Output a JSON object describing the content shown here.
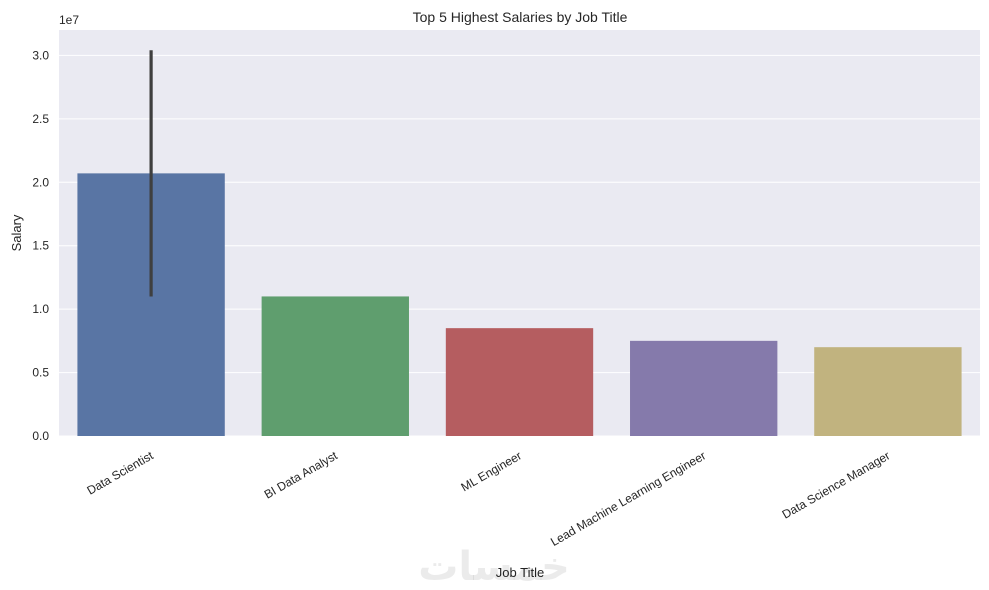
{
  "chart_data": {
    "type": "bar",
    "title": "Top 5 Highest Salaries by Job Title",
    "xlabel": "Job Title",
    "ylabel": "Salary",
    "y_offset_label": "1e7",
    "ylim": [
      0,
      32000000
    ],
    "yticks": [
      0,
      5000000,
      10000000,
      15000000,
      20000000,
      25000000,
      30000000
    ],
    "ytick_labels": [
      "0.0",
      "0.5",
      "1.0",
      "1.5",
      "2.0",
      "2.5",
      "3.0"
    ],
    "grid": true,
    "categories": [
      "Data Scientist",
      "BI Data Analyst",
      "ML Engineer",
      "Lead Machine Learning Engineer",
      "Data Science Manager"
    ],
    "values": [
      20700000,
      11000000,
      8500000,
      7500000,
      7000000
    ],
    "error_bars": [
      [
        11000000,
        30400000
      ],
      null,
      null,
      null,
      null
    ],
    "colors": [
      "#5975a4",
      "#5f9e6e",
      "#b55d60",
      "#857aab",
      "#c1b37f"
    ],
    "background_color": "#eaeaf2",
    "watermark": "خمسات"
  }
}
